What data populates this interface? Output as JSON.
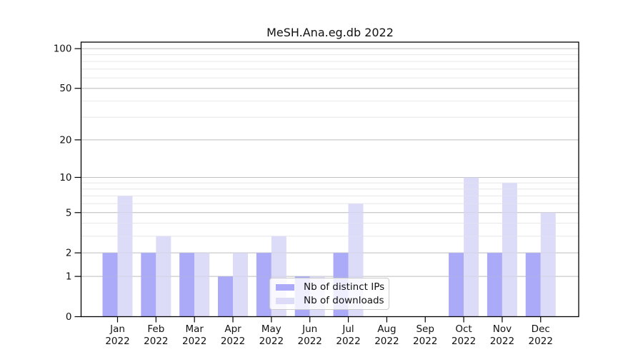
{
  "title": "MeSH.Ana.eg.db 2022",
  "chart_data": {
    "type": "bar",
    "title": "MeSH.Ana.eg.db 2022",
    "categories": [
      "Jan 2022",
      "Feb 2022",
      "Mar 2022",
      "Apr 2022",
      "May 2022",
      "Jun 2022",
      "Jul 2022",
      "Aug 2022",
      "Sep 2022",
      "Oct 2022",
      "Nov 2022",
      "Dec 2022"
    ],
    "series": [
      {
        "name": "Nb of distinct IPs",
        "color": "#aaaaf8",
        "values": [
          2,
          2,
          2,
          1,
          2,
          1,
          2,
          0,
          0,
          2,
          2,
          2
        ]
      },
      {
        "name": "Nb of downloads",
        "color": "#dcdcf8",
        "values": [
          7,
          3,
          2,
          2,
          3,
          1,
          6,
          0,
          0,
          10,
          9,
          5
        ]
      }
    ],
    "y_scale": "log1p",
    "y_ticks": [
      0,
      1,
      2,
      5,
      10,
      20,
      50,
      100
    ],
    "y_minor_gridlines": [
      3,
      4,
      6,
      7,
      8,
      9,
      30,
      40,
      60,
      70,
      80,
      90
    ],
    "ylim": [
      0,
      112
    ],
    "grid": true,
    "legend_position": "lower-center",
    "axis_color": "#000000",
    "text_color": "#111111",
    "major_grid_color": "#c0c0c0",
    "minor_grid_color": "#e9e9e9"
  }
}
